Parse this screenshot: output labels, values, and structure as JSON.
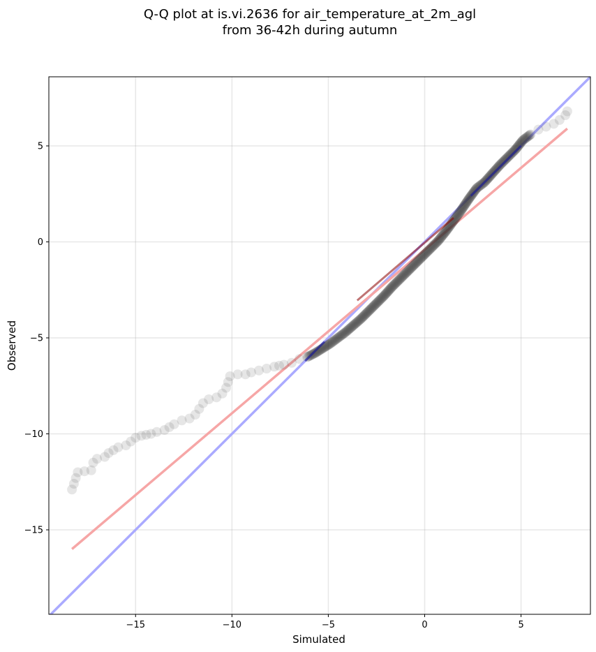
{
  "chart_data": {
    "type": "scatter",
    "title": [
      "Q-Q plot at is.vi.2636 for air_temperature_at_2m_agl",
      "from 36-42h during autumn"
    ],
    "xlabel": "Simulated",
    "ylabel": "Observed",
    "xlim": [
      -19.5,
      8.6
    ],
    "ylim": [
      -19.4,
      8.6
    ],
    "xticks": [
      -15,
      -10,
      -5,
      0,
      5
    ],
    "yticks": [
      5,
      0,
      -5,
      -10,
      -15
    ],
    "xtick_labels": [
      "−15",
      "−10",
      "−5",
      "0",
      "5"
    ],
    "ytick_labels": [
      "5",
      "0",
      "−5",
      "−10",
      "−15"
    ],
    "grid": true,
    "point_color": "#333333",
    "quantile_points": [
      [
        -18.3,
        -12.9
      ],
      [
        -18.0,
        -12.0
      ],
      [
        -17.3,
        -11.9
      ],
      [
        -17.2,
        -11.5
      ],
      [
        -17.0,
        -11.3
      ],
      [
        -16.6,
        -11.2
      ],
      [
        -16.4,
        -11.0
      ],
      [
        -15.9,
        -10.7
      ],
      [
        -15.5,
        -10.6
      ],
      [
        -15.0,
        -10.2
      ],
      [
        -14.7,
        -10.1
      ],
      [
        -14.2,
        -10.0
      ],
      [
        -13.9,
        -9.9
      ],
      [
        -13.5,
        -9.8
      ],
      [
        -13.0,
        -9.5
      ],
      [
        -12.6,
        -9.3
      ],
      [
        -12.2,
        -9.2
      ],
      [
        -11.9,
        -9.0
      ],
      [
        -11.7,
        -8.7
      ],
      [
        -11.5,
        -8.4
      ],
      [
        -11.2,
        -8.2
      ],
      [
        -10.8,
        -8.1
      ],
      [
        -10.5,
        -7.9
      ],
      [
        -10.3,
        -7.6
      ],
      [
        -10.2,
        -7.3
      ],
      [
        -10.1,
        -7.0
      ],
      [
        -9.7,
        -6.9
      ],
      [
        -9.3,
        -6.9
      ],
      [
        -9.0,
        -6.8
      ],
      [
        -8.6,
        -6.7
      ],
      [
        -8.2,
        -6.6
      ],
      [
        -7.8,
        -6.5
      ],
      [
        -7.3,
        -6.4
      ],
      [
        -6.9,
        -6.3
      ],
      [
        -6.5,
        -6.1
      ],
      [
        -6.1,
        -6.0
      ],
      [
        -5.7,
        -5.8
      ],
      [
        -5.3,
        -5.55
      ],
      [
        -4.9,
        -5.3
      ],
      [
        -4.5,
        -5.0
      ],
      [
        -4.1,
        -4.7
      ],
      [
        -3.7,
        -4.35
      ],
      [
        -3.3,
        -4.0
      ],
      [
        -2.9,
        -3.6
      ],
      [
        -2.5,
        -3.2
      ],
      [
        -2.1,
        -2.8
      ],
      [
        -1.7,
        -2.35
      ],
      [
        -1.3,
        -1.95
      ],
      [
        -0.9,
        -1.55
      ],
      [
        -0.5,
        -1.15
      ],
      [
        -0.1,
        -0.75
      ],
      [
        0.3,
        -0.35
      ],
      [
        0.7,
        0.05
      ],
      [
        1.1,
        0.55
      ],
      [
        1.5,
        1.1
      ],
      [
        1.9,
        1.65
      ],
      [
        2.3,
        2.25
      ],
      [
        2.7,
        2.8
      ],
      [
        3.1,
        3.1
      ],
      [
        3.5,
        3.55
      ],
      [
        3.9,
        4.0
      ],
      [
        4.3,
        4.4
      ],
      [
        4.7,
        4.8
      ],
      [
        5.1,
        5.3
      ],
      [
        5.5,
        5.6
      ],
      [
        5.9,
        5.85
      ],
      [
        6.3,
        6.0
      ],
      [
        6.7,
        6.15
      ],
      [
        7.0,
        6.35
      ],
      [
        7.3,
        6.6
      ],
      [
        7.4,
        6.8
      ]
    ],
    "reference_line": {
      "color": "#aaaaff",
      "from": [
        -19.5,
        -19.5
      ],
      "to": [
        8.6,
        8.6
      ]
    },
    "fit_line": {
      "color": "#f6a6a6",
      "from": [
        -18.3,
        -16.0
      ],
      "to": [
        7.4,
        5.9
      ]
    },
    "dense_overlay_colors": {
      "red": "#8b0000",
      "blue": "#1a1aa0"
    }
  }
}
